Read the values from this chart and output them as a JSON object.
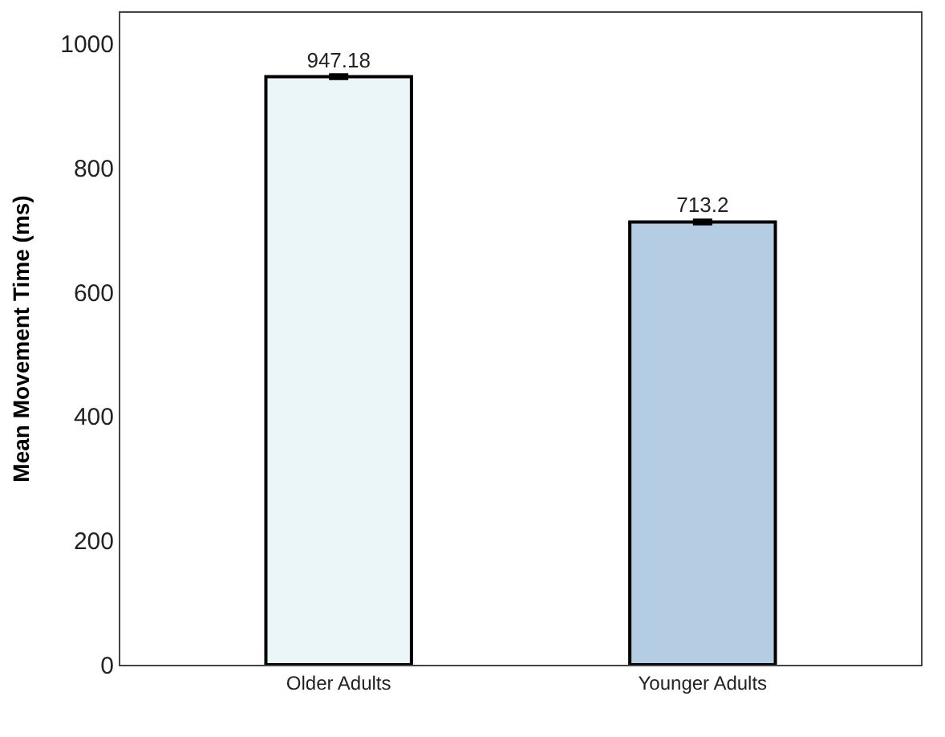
{
  "chart_data": {
    "type": "bar",
    "ylabel": "Mean Movement Time (ms)",
    "categories": [
      "Older Adults",
      "Younger Adults"
    ],
    "values": [
      947.18,
      713.2
    ],
    "colors": [
      "#eaf6f8",
      "#b4cde2"
    ],
    "errors": [
      3,
      3
    ],
    "data_labels": true,
    "ylim": [
      0,
      1050
    ],
    "yticks": [
      0,
      200,
      400,
      600,
      800,
      1000
    ],
    "legend": false
  }
}
